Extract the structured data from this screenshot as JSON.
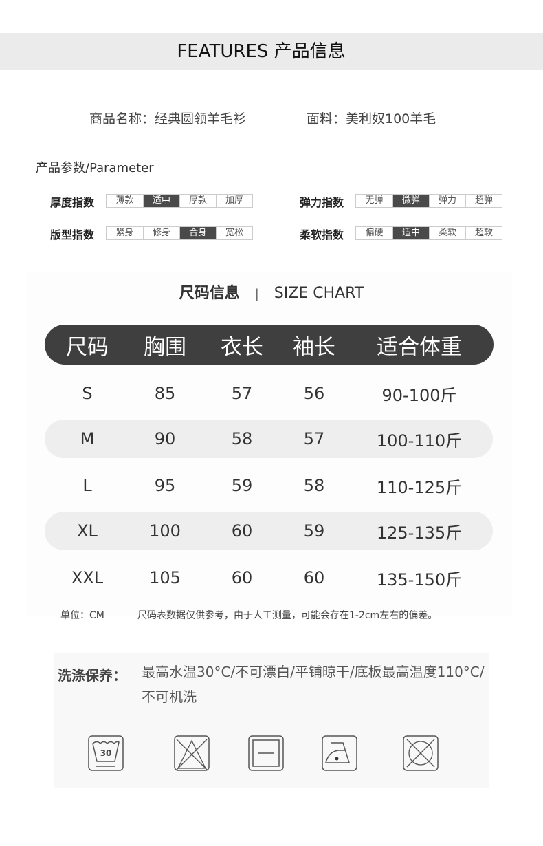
{
  "header": {
    "title": "FEATURES 产品信息"
  },
  "product": {
    "name": "商品名称：经典圆领羊毛衫",
    "fabric": "面料：美利奴100羊毛"
  },
  "parameters": {
    "title": "产品参数/Parameter",
    "items": [
      {
        "label": "厚度指数",
        "options": [
          "薄款",
          "适中",
          "厚款",
          "加厚"
        ],
        "selected": 1
      },
      {
        "label": "弹力指数",
        "options": [
          "无弹",
          "微弹",
          "弹力",
          "超弹"
        ],
        "selected": 1
      },
      {
        "label": "版型指数",
        "options": [
          "紧身",
          "修身",
          "合身",
          "宽松"
        ],
        "selected": 2
      },
      {
        "label": "柔软指数",
        "options": [
          "偏硬",
          "适中",
          "柔软",
          "超软"
        ],
        "selected": 1
      }
    ]
  },
  "size_chart": {
    "title_cn": "尺码信息",
    "separator": "|",
    "title_en": "SIZE CHART",
    "headers": [
      "尺码",
      "胸围",
      "衣长",
      "袖长",
      "适合体重"
    ],
    "rows": [
      [
        "S",
        "85",
        "57",
        "56",
        "90-100斤"
      ],
      [
        "M",
        "90",
        "58",
        "57",
        "100-110斤"
      ],
      [
        "L",
        "95",
        "59",
        "58",
        "110-125斤"
      ],
      [
        "XL",
        "100",
        "60",
        "59",
        "125-135斤"
      ],
      [
        "XXL",
        "105",
        "60",
        "60",
        "135-150斤"
      ]
    ],
    "unit": "单位：CM",
    "note": "尺码表数据仅供参考，由于人工测量，可能会存在1-2cm左右的偏差。"
  },
  "care": {
    "label": "洗涤保养：",
    "text": "最高水温30°C/不可漂白/平铺晾干/底板最高温度110°C/不可机洗",
    "icons": [
      "wash-30-icon",
      "no-bleach-icon",
      "dry-flat-icon",
      "iron-110-icon",
      "no-tumble-dry-icon"
    ],
    "wash_temp": "30"
  }
}
